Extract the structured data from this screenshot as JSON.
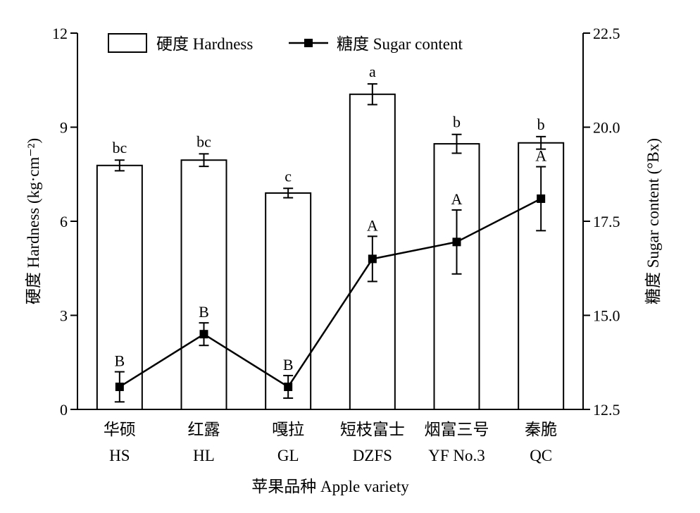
{
  "chart_data": {
    "type": "bar",
    "categories_cn": [
      "华硕",
      "红露",
      "嘎拉",
      "短枝富士",
      "烟富三号",
      "秦脆"
    ],
    "categories": [
      "HS",
      "HL",
      "GL",
      "DZFS",
      "YF No.3",
      "QC"
    ],
    "xlabel": "苹果品种 Apple variety",
    "ylabel_left": "硬度 Hardness (kg·cm⁻²)",
    "ylabel_right": "糖度 Sugar content (°Bx)",
    "y_left": {
      "lim": [
        0,
        12
      ],
      "ticks": [
        "0",
        "3",
        "6",
        "9",
        "12"
      ]
    },
    "y_right": {
      "lim": [
        12.5,
        22.5
      ],
      "ticks": [
        "12.5",
        "15.0",
        "17.5",
        "20.0",
        "22.5"
      ]
    },
    "legend": {
      "position": "top",
      "hardness": "硬度 Hardness",
      "sugar": "糖度 Sugar content"
    },
    "series": [
      {
        "name": "硬度 Hardness",
        "kind": "bar",
        "axis": "left",
        "values": [
          7.78,
          7.95,
          6.9,
          10.05,
          8.47,
          8.5
        ],
        "errors": [
          0.17,
          0.2,
          0.15,
          0.33,
          0.3,
          0.2
        ],
        "letters": [
          "bc",
          "bc",
          "c",
          "a",
          "b",
          "b"
        ]
      },
      {
        "name": "糖度 Sugar content",
        "kind": "line",
        "axis": "right",
        "values": [
          13.1,
          14.5,
          13.1,
          16.5,
          16.95,
          18.1
        ],
        "errors": [
          0.4,
          0.3,
          0.3,
          0.6,
          0.85,
          0.85
        ],
        "letters": [
          "B",
          "B",
          "B",
          "A",
          "A",
          "A"
        ]
      }
    ]
  }
}
